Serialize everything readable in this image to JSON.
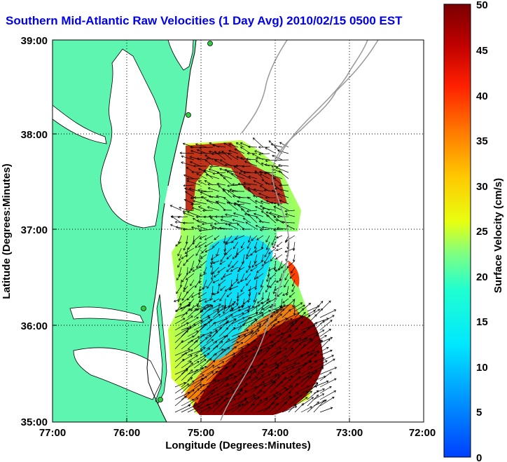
{
  "title": "Southern Mid-Atlantic Raw Velocities (1 Day Avg) 2010/02/15 0500 EST",
  "chart_data": {
    "type": "map",
    "xlabel": "Longitude (Degrees:Minutes)",
    "ylabel": "Latitude (Degrees:Minutes)",
    "x_ticks": [
      "77:00",
      "76:00",
      "75:00",
      "74:00",
      "73:00",
      "72:00"
    ],
    "y_ticks": [
      "39:00",
      "38:00",
      "37:00",
      "36:00",
      "35:00"
    ],
    "xlim": [
      -77,
      -72
    ],
    "ylim": [
      35,
      39
    ],
    "grid": true,
    "colorbar": {
      "label": "Surface Velocity (cm/s)",
      "ticks": [
        "50",
        "45",
        "40",
        "35",
        "30",
        "25",
        "20",
        "15",
        "10",
        "5",
        "0"
      ],
      "range": [
        0,
        50
      ],
      "colormap": "jet"
    },
    "colors": {
      "land": "#5df5b0",
      "title": "#0000ee",
      "contour": "#999999",
      "arrows": "#000000",
      "stations": "#2ecc40"
    }
  }
}
